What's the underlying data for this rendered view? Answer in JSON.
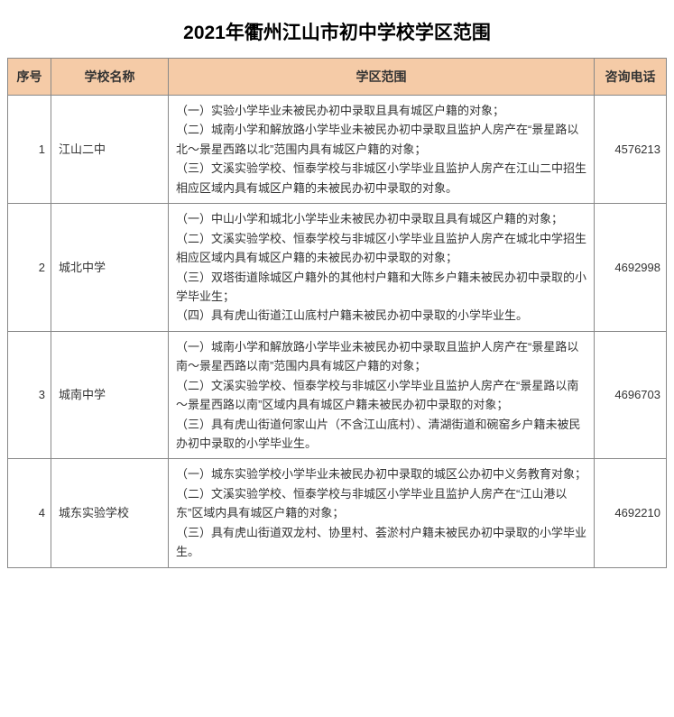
{
  "title": "2021年衢州江山市初中学校学区范围",
  "columns": [
    "序号",
    "学校名称",
    "学区范围",
    "咨询电话"
  ],
  "rows": [
    {
      "num": "1",
      "name": "江山二中",
      "area": "（一）实验小学毕业未被民办初中录取且具有城区户籍的对象；\n（二）城南小学和解放路小学毕业未被民办初中录取且监护人房产在“景星路以北～景星西路以北”范围内具有城区户籍的对象；\n（三）文溪实验学校、恒泰学校与非城区小学毕业且监护人房产在江山二中招生相应区域内具有城区户籍的未被民办初中录取的对象。",
      "tel": "4576213"
    },
    {
      "num": "2",
      "name": "城北中学",
      "area": "（一）中山小学和城北小学毕业未被民办初中录取且具有城区户籍的对象；\n（二）文溪实验学校、恒泰学校与非城区小学毕业且监护人房产在城北中学招生相应区域内具有城区户籍的未被民办初中录取的对象；\n（三）双塔街道除城区户籍外的其他村户籍和大陈乡户籍未被民办初中录取的小学毕业生；\n（四）具有虎山街道江山底村户籍未被民办初中录取的小学毕业生。",
      "tel": "4692998"
    },
    {
      "num": "3",
      "name": "城南中学",
      "area": "（一）城南小学和解放路小学毕业未被民办初中录取且监护人房产在“景星路以南～景星西路以南”范围内具有城区户籍的对象；\n（二）文溪实验学校、恒泰学校与非城区小学毕业且监护人房产在“景星路以南～景星西路以南”区域内具有城区户籍未被民办初中录取的对象；\n（三）具有虎山街道何家山片（不含江山底村）、清湖街道和碗窑乡户籍未被民办初中录取的小学毕业生。",
      "tel": "4696703"
    },
    {
      "num": "4",
      "name": "城东实验学校",
      "area": "（一）城东实验学校小学毕业未被民办初中录取的城区公办初中义务教育对象；\n（二）文溪实验学校、恒泰学校与非城区小学毕业且监护人房产在“江山港以东”区域内具有城区户籍的对象；\n（三）具有虎山街道双龙村、协里村、荟淤村户籍未被民办初中录取的小学毕业生。",
      "tel": "4692210"
    }
  ]
}
